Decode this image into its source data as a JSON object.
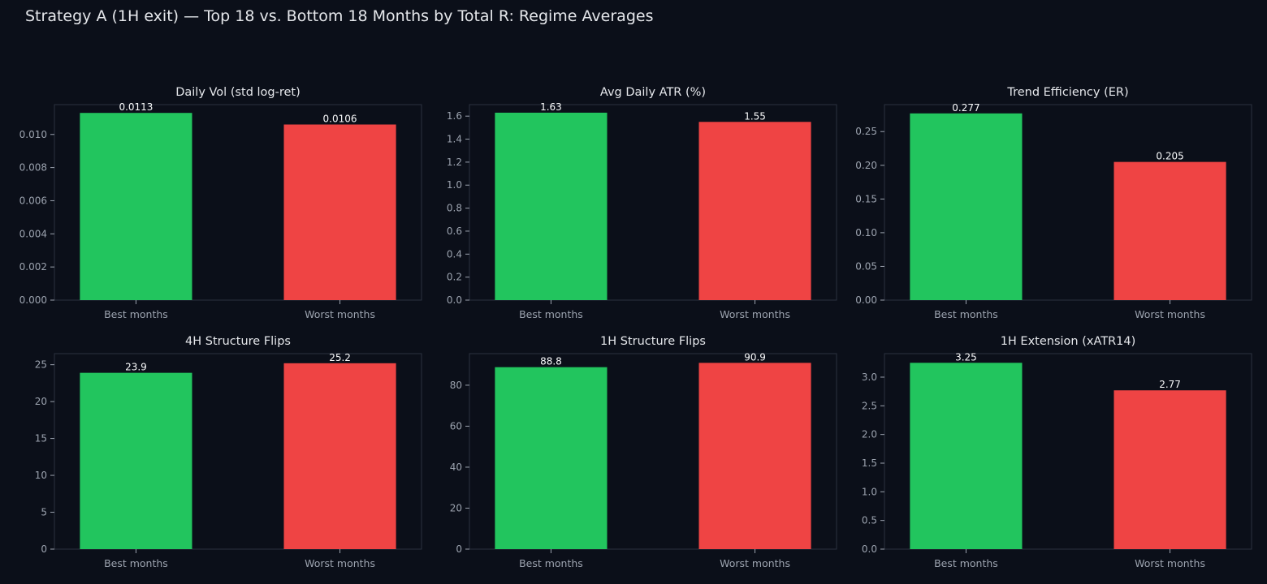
{
  "page_title": "Strategy A (1H exit) — Top 18 vs. Bottom 18 Months by Total R: Regime Averages",
  "colors": {
    "background": "#0b0f19",
    "best": "#22c55e",
    "worst": "#ef4444",
    "tick_text": "#9ca3af",
    "title_text": "#e5e7eb",
    "label_text": "#f9fafb",
    "axes_edge": "#2b3240"
  },
  "chart_data": [
    {
      "type": "bar",
      "title": "Daily Vol (std log-ret)",
      "categories": [
        "Best months",
        "Worst months"
      ],
      "values": [
        0.0113,
        0.0106
      ],
      "value_labels": [
        "0.0113",
        "0.0106"
      ],
      "ylim": [
        0,
        0.0118
      ],
      "yticks": [
        0,
        0.002,
        0.004,
        0.006,
        0.008,
        0.01
      ],
      "ytick_labels": [
        "0.000",
        "0.002",
        "0.004",
        "0.006",
        "0.008",
        "0.010"
      ],
      "grid": false
    },
    {
      "type": "bar",
      "title": "Avg Daily ATR (%)",
      "categories": [
        "Best months",
        "Worst months"
      ],
      "values": [
        1.63,
        1.55
      ],
      "value_labels": [
        "1.63",
        "1.55"
      ],
      "ylim": [
        0,
        1.7
      ],
      "yticks": [
        0,
        0.2,
        0.4,
        0.6,
        0.8,
        1.0,
        1.2,
        1.4,
        1.6
      ],
      "ytick_labels": [
        "0.0",
        "0.2",
        "0.4",
        "0.6",
        "0.8",
        "1.0",
        "1.2",
        "1.4",
        "1.6"
      ],
      "grid": false
    },
    {
      "type": "bar",
      "title": "Trend Efficiency (ER)",
      "categories": [
        "Best months",
        "Worst months"
      ],
      "values": [
        0.277,
        0.205
      ],
      "value_labels": [
        "0.277",
        "0.205"
      ],
      "ylim": [
        0,
        0.29
      ],
      "yticks": [
        0,
        0.05,
        0.1,
        0.15,
        0.2,
        0.25
      ],
      "ytick_labels": [
        "0.00",
        "0.05",
        "0.10",
        "0.15",
        "0.20",
        "0.25"
      ],
      "grid": false
    },
    {
      "type": "bar",
      "title": "4H Structure Flips",
      "categories": [
        "Best months",
        "Worst months"
      ],
      "values": [
        23.9,
        25.2
      ],
      "value_labels": [
        "23.9",
        "25.2"
      ],
      "ylim": [
        0,
        26.5
      ],
      "yticks": [
        0,
        5,
        10,
        15,
        20,
        25
      ],
      "ytick_labels": [
        "0",
        "5",
        "10",
        "15",
        "20",
        "25"
      ],
      "grid": false
    },
    {
      "type": "bar",
      "title": "1H Structure Flips",
      "categories": [
        "Best months",
        "Worst months"
      ],
      "values": [
        88.8,
        90.9
      ],
      "value_labels": [
        "88.8",
        "90.9"
      ],
      "ylim": [
        0,
        95.4
      ],
      "yticks": [
        0,
        20,
        40,
        60,
        80
      ],
      "ytick_labels": [
        "0",
        "20",
        "40",
        "60",
        "80"
      ],
      "grid": false
    },
    {
      "type": "bar",
      "title": "1H Extension (xATR14)",
      "categories": [
        "Best months",
        "Worst months"
      ],
      "values": [
        3.25,
        2.77
      ],
      "value_labels": [
        "3.25",
        "2.77"
      ],
      "ylim": [
        0,
        3.41
      ],
      "yticks": [
        0,
        0.5,
        1.0,
        1.5,
        2.0,
        2.5,
        3.0
      ],
      "ytick_labels": [
        "0.0",
        "0.5",
        "1.0",
        "1.5",
        "2.0",
        "2.5",
        "3.0"
      ],
      "grid": false
    }
  ]
}
